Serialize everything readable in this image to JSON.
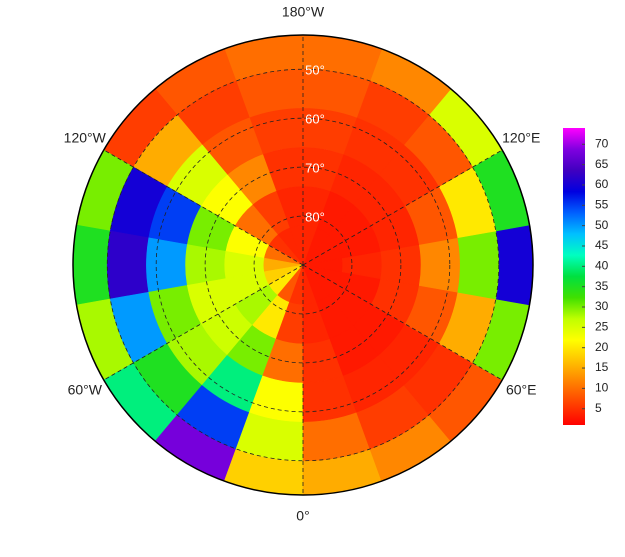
{
  "chart_data": {
    "type": "polar-grid",
    "rlim": [
      90,
      43
    ],
    "lat_edges": [
      43,
      50,
      58,
      66,
      74,
      82,
      90
    ],
    "lon_edges": [
      -180,
      -160,
      -140,
      -120,
      -100,
      -80,
      -60,
      -40,
      -20,
      0,
      20,
      40,
      60,
      80,
      100,
      120,
      140,
      160,
      180
    ],
    "values": [
      [
        10,
        8,
        6,
        30,
        35,
        28,
        40,
        68,
        18,
        15,
        12,
        8,
        30,
        60,
        35,
        25,
        12,
        10
      ],
      [
        8,
        6,
        15,
        60,
        62,
        50,
        35,
        55,
        25,
        10,
        6,
        5,
        15,
        30,
        20,
        8,
        6,
        8
      ],
      [
        6,
        8,
        25,
        55,
        50,
        30,
        28,
        40,
        22,
        5,
        4,
        4,
        8,
        12,
        8,
        5,
        5,
        6
      ],
      [
        5,
        12,
        22,
        30,
        28,
        25,
        26,
        30,
        10,
        5,
        3,
        3,
        5,
        5,
        4,
        4,
        4,
        5
      ],
      [
        4,
        6,
        10,
        22,
        25,
        25,
        28,
        20,
        6,
        4,
        3,
        3,
        3,
        4,
        3,
        3,
        3,
        4
      ],
      [
        4,
        4,
        5,
        10,
        15,
        18,
        20,
        8,
        5,
        4,
        3,
        3,
        3,
        3,
        3,
        3,
        3,
        4
      ]
    ],
    "lon_ticks": [
      {
        "value": -180,
        "label": "180°W"
      },
      {
        "value": -120,
        "label": "120°W"
      },
      {
        "value": -60,
        "label": "60°W"
      },
      {
        "value": 0,
        "label": "0°"
      },
      {
        "value": 60,
        "label": "60°E"
      },
      {
        "value": 120,
        "label": "120°E"
      }
    ],
    "lat_ticks": [
      {
        "value": 50,
        "label": "50°"
      },
      {
        "value": 60,
        "label": "60°"
      },
      {
        "value": 70,
        "label": "70°"
      },
      {
        "value": 80,
        "label": "80°"
      }
    ],
    "colorbar": {
      "lim": [
        1,
        74
      ],
      "ticks": [
        5,
        10,
        15,
        20,
        25,
        30,
        35,
        40,
        45,
        50,
        55,
        60,
        65,
        70
      ],
      "colors": [
        "#ff0000",
        "#ff4000",
        "#ff8000",
        "#ffc000",
        "#ffff00",
        "#c0ff00",
        "#40e000",
        "#00e040",
        "#00ffc0",
        "#00c0ff",
        "#0060ff",
        "#0000e0",
        "#4000c0",
        "#8000e0",
        "#ff00ff"
      ]
    }
  }
}
